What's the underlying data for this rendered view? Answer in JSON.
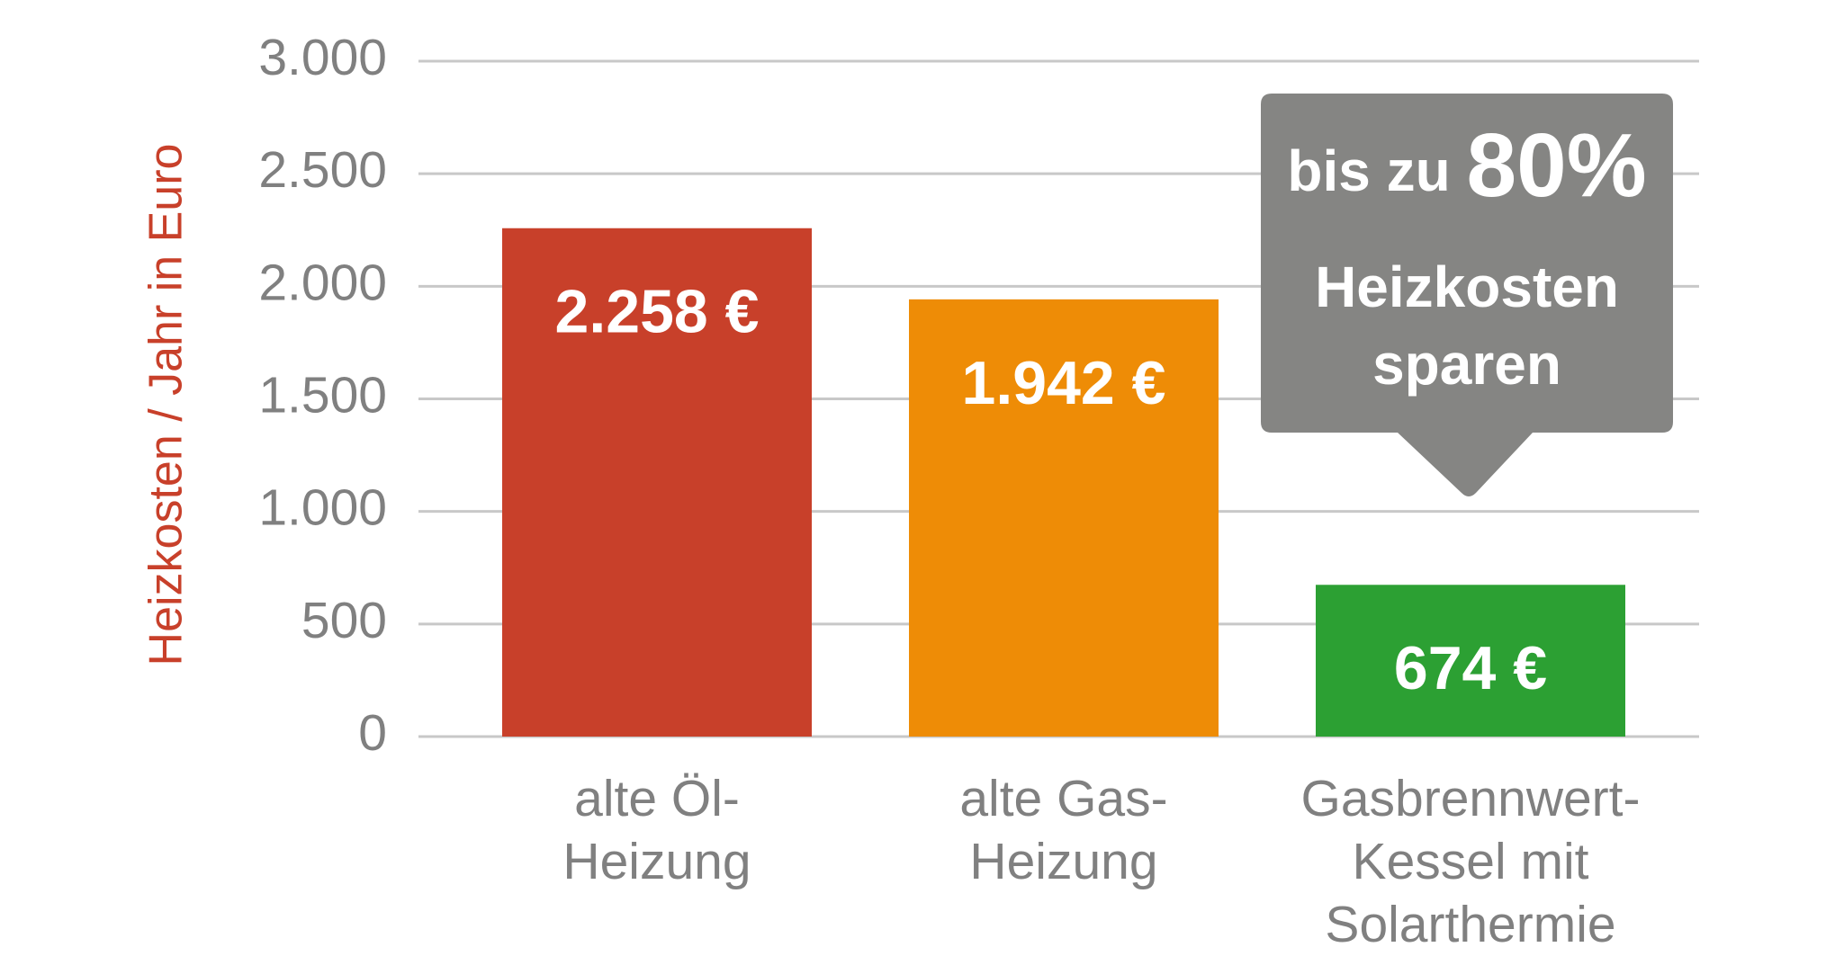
{
  "chart_data": {
    "type": "bar",
    "y_label": "Heizkosten / Jahr in Euro",
    "categories": [
      "alte Öl-\nHeizung",
      "alte Gas-\nHeizung",
      "Gasbrennwert-\nKessel mit\nSolarthermie"
    ],
    "values": [
      2258,
      1942,
      674
    ],
    "value_labels": [
      "2.258 €",
      "1.942 €",
      "674 €"
    ],
    "colors": [
      "#c8402a",
      "#ee8c06",
      "#2ca033"
    ],
    "ylim": [
      0,
      3000
    ],
    "yticks": [
      0,
      500,
      {
        "value": 1000,
        "label": "1.000"
      },
      {
        "value": 1500,
        "label": "1.500"
      },
      {
        "value": 2000,
        "label": "2.000"
      },
      {
        "value": 2500,
        "label": "2.500"
      },
      {
        "value": 3000,
        "label": "3.000"
      }
    ],
    "grid": true,
    "annotation": [
      "bis zu",
      "80%",
      "Heizkosten",
      "sparen"
    ]
  }
}
